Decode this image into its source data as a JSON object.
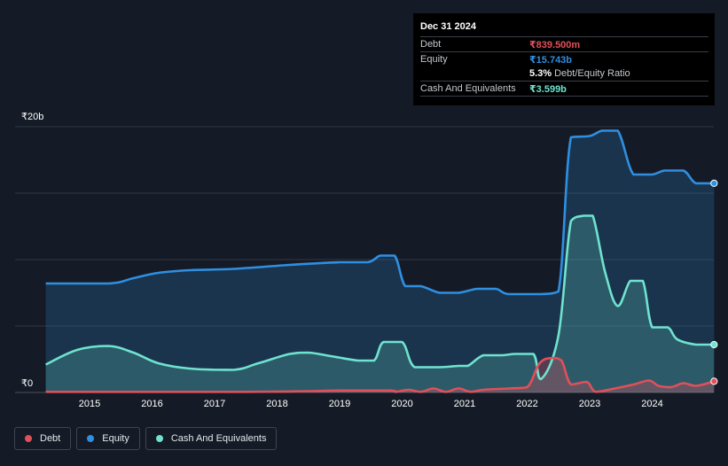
{
  "tooltip": {
    "date": "Dec 31 2024",
    "debt_label": "Debt",
    "debt_value": "₹839.500m",
    "equity_label": "Equity",
    "equity_value": "₹15.743b",
    "ratio_pct": "5.3%",
    "ratio_label": "Debt/Equity Ratio",
    "cash_label": "Cash And Equivalents",
    "cash_value": "₹3.599b"
  },
  "colors": {
    "debt": "#e0505a",
    "equity": "#2f8fe0",
    "cash": "#6fe3cf",
    "background": "#151b26",
    "grid": "#2e3541"
  },
  "legend": [
    {
      "label": "Debt",
      "color": "#e0505a"
    },
    {
      "label": "Equity",
      "color": "#2f8fe0"
    },
    {
      "label": "Cash And Equivalents",
      "color": "#6fe3cf"
    }
  ],
  "chart_data": {
    "type": "area",
    "y_unit": "₹ billions",
    "ylim": [
      0,
      20
    ],
    "ytick_labels": [
      {
        "value": 20,
        "label": "₹20b"
      },
      {
        "value": 0,
        "label": "₹0"
      }
    ],
    "gridlines": [
      0,
      5,
      10,
      15,
      20
    ],
    "xlim": [
      2014.3,
      2025.0
    ],
    "x_ticks": [
      "2015",
      "2016",
      "2017",
      "2018",
      "2019",
      "2020",
      "2021",
      "2022",
      "2023",
      "2024"
    ],
    "series": [
      {
        "name": "Equity",
        "points": [
          [
            2014.3,
            8.2
          ],
          [
            2015.3,
            8.2
          ],
          [
            2015.7,
            8.6
          ],
          [
            2016.1,
            9.0
          ],
          [
            2016.6,
            9.2
          ],
          [
            2017.3,
            9.3
          ],
          [
            2018.2,
            9.6
          ],
          [
            2019.0,
            9.8
          ],
          [
            2019.45,
            9.8
          ],
          [
            2019.65,
            10.3
          ],
          [
            2019.88,
            10.3
          ],
          [
            2020.05,
            8.0
          ],
          [
            2020.3,
            8.0
          ],
          [
            2020.6,
            7.5
          ],
          [
            2020.9,
            7.5
          ],
          [
            2021.2,
            7.8
          ],
          [
            2021.5,
            7.8
          ],
          [
            2021.7,
            7.4
          ],
          [
            2022.2,
            7.4
          ],
          [
            2022.5,
            7.6
          ],
          [
            2022.7,
            19.2
          ],
          [
            2023.0,
            19.3
          ],
          [
            2023.2,
            19.7
          ],
          [
            2023.45,
            19.7
          ],
          [
            2023.7,
            16.4
          ],
          [
            2024.0,
            16.4
          ],
          [
            2024.2,
            16.7
          ],
          [
            2024.5,
            16.7
          ],
          [
            2024.7,
            15.74
          ],
          [
            2024.99,
            15.74
          ]
        ]
      },
      {
        "name": "Cash And Equivalents",
        "points": [
          [
            2014.3,
            2.1
          ],
          [
            2014.8,
            3.2
          ],
          [
            2015.3,
            3.5
          ],
          [
            2015.7,
            3.0
          ],
          [
            2016.1,
            2.2
          ],
          [
            2016.6,
            1.8
          ],
          [
            2017.3,
            1.7
          ],
          [
            2017.7,
            2.2
          ],
          [
            2018.2,
            2.9
          ],
          [
            2018.5,
            3.0
          ],
          [
            2018.9,
            2.7
          ],
          [
            2019.3,
            2.4
          ],
          [
            2019.55,
            2.4
          ],
          [
            2019.7,
            3.8
          ],
          [
            2020.0,
            3.8
          ],
          [
            2020.2,
            1.9
          ],
          [
            2020.6,
            1.9
          ],
          [
            2020.9,
            2.0
          ],
          [
            2021.05,
            2.0
          ],
          [
            2021.3,
            2.8
          ],
          [
            2021.6,
            2.8
          ],
          [
            2021.8,
            2.9
          ],
          [
            2022.1,
            2.9
          ],
          [
            2022.22,
            1.0
          ],
          [
            2022.5,
            4.3
          ],
          [
            2022.7,
            12.9
          ],
          [
            2022.9,
            13.3
          ],
          [
            2023.05,
            13.3
          ],
          [
            2023.25,
            9.0
          ],
          [
            2023.45,
            6.5
          ],
          [
            2023.65,
            8.4
          ],
          [
            2023.85,
            8.4
          ],
          [
            2024.0,
            4.9
          ],
          [
            2024.25,
            4.9
          ],
          [
            2024.4,
            4.0
          ],
          [
            2024.7,
            3.6
          ],
          [
            2024.99,
            3.6
          ]
        ]
      },
      {
        "name": "Debt",
        "points": [
          [
            2014.3,
            0.05
          ],
          [
            2017.5,
            0.05
          ],
          [
            2018.5,
            0.1
          ],
          [
            2019.0,
            0.15
          ],
          [
            2019.8,
            0.15
          ],
          [
            2019.9,
            0.05
          ],
          [
            2020.1,
            0.2
          ],
          [
            2020.3,
            0.05
          ],
          [
            2020.5,
            0.3
          ],
          [
            2020.7,
            0.05
          ],
          [
            2020.9,
            0.3
          ],
          [
            2021.1,
            0.05
          ],
          [
            2021.3,
            0.2
          ],
          [
            2021.7,
            0.3
          ],
          [
            2022.0,
            0.4
          ],
          [
            2022.2,
            2.2
          ],
          [
            2022.4,
            2.6
          ],
          [
            2022.55,
            2.4
          ],
          [
            2022.7,
            0.6
          ],
          [
            2022.95,
            0.8
          ],
          [
            2023.1,
            0.05
          ],
          [
            2023.4,
            0.3
          ],
          [
            2023.7,
            0.6
          ],
          [
            2023.95,
            0.9
          ],
          [
            2024.1,
            0.5
          ],
          [
            2024.3,
            0.4
          ],
          [
            2024.5,
            0.7
          ],
          [
            2024.7,
            0.5
          ],
          [
            2024.99,
            0.84
          ]
        ]
      }
    ]
  }
}
